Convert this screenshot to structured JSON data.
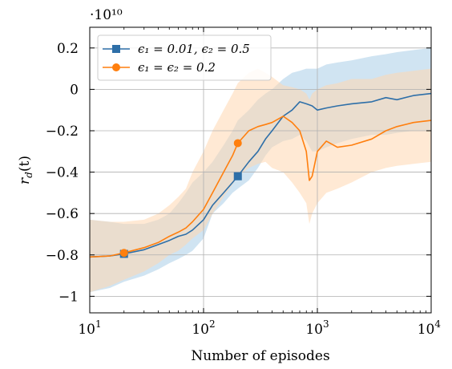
{
  "chart_data": {
    "type": "line",
    "xscale": "log",
    "xlim": [
      10,
      10000
    ],
    "ylim": [
      -1.08,
      0.3
    ],
    "y_multiplier_label": "·10¹⁰",
    "xlabel": "Number of episodes",
    "ylabel": "r_d(t)",
    "ylabel_display": "r",
    "ylabel_sub": "d",
    "ylabel_suffix": "(t)",
    "grid": true,
    "legend_position": "top-left",
    "x_ticks": [
      {
        "value": 10,
        "base": "10",
        "exp": "1"
      },
      {
        "value": 100,
        "base": "10",
        "exp": "2"
      },
      {
        "value": 1000,
        "base": "10",
        "exp": "3"
      },
      {
        "value": 10000,
        "base": "10",
        "exp": "4"
      }
    ],
    "y_ticks": [
      {
        "value": 0.2,
        "label": "0.2"
      },
      {
        "value": 0,
        "label": "0"
      },
      {
        "value": -0.2,
        "label": "−0.2"
      },
      {
        "value": -0.4,
        "label": "−0.4"
      },
      {
        "value": -0.6,
        "label": "−0.6"
      },
      {
        "value": -0.8,
        "label": "−0.8"
      },
      {
        "value": -1.0,
        "label": "−1"
      }
    ],
    "series": [
      {
        "name": "ϵ₁ = 0.01,  ϵ₂ = 0.5",
        "color": "#2e6fa8",
        "band_color": "#a9cde8",
        "marker": "square",
        "markers_at": [
          20,
          200
        ],
        "x": [
          10,
          15,
          20,
          30,
          40,
          50,
          60,
          70,
          80,
          100,
          120,
          150,
          180,
          200,
          250,
          300,
          350,
          400,
          500,
          600,
          700,
          800,
          900,
          1000,
          1200,
          1500,
          2000,
          3000,
          4000,
          5000,
          7000,
          10000
        ],
        "y": [
          -0.81,
          -0.805,
          -0.795,
          -0.775,
          -0.75,
          -0.73,
          -0.71,
          -0.7,
          -0.68,
          -0.63,
          -0.56,
          -0.5,
          -0.45,
          -0.42,
          -0.35,
          -0.3,
          -0.24,
          -0.2,
          -0.13,
          -0.1,
          -0.06,
          -0.07,
          -0.08,
          -0.1,
          -0.09,
          -0.08,
          -0.07,
          -0.06,
          -0.04,
          -0.05,
          -0.03,
          -0.02
        ],
        "y_lower": [
          -0.98,
          -0.96,
          -0.93,
          -0.9,
          -0.87,
          -0.84,
          -0.82,
          -0.8,
          -0.78,
          -0.72,
          -0.6,
          -0.55,
          -0.5,
          -0.48,
          -0.44,
          -0.38,
          -0.32,
          -0.28,
          -0.25,
          -0.24,
          -0.22,
          -0.25,
          -0.3,
          -0.3,
          -0.28,
          -0.26,
          -0.24,
          -0.22,
          -0.22,
          -0.21,
          -0.2,
          -0.2
        ],
        "y_upper": [
          -0.63,
          -0.64,
          -0.65,
          -0.65,
          -0.63,
          -0.6,
          -0.55,
          -0.5,
          -0.45,
          -0.4,
          -0.35,
          -0.27,
          -0.2,
          -0.15,
          -0.1,
          -0.05,
          -0.02,
          0.0,
          0.05,
          0.08,
          0.09,
          0.1,
          0.1,
          0.1,
          0.12,
          0.13,
          0.14,
          0.16,
          0.17,
          0.18,
          0.19,
          0.2
        ]
      },
      {
        "name": "ϵ₁ = ϵ₂ = 0.2",
        "color": "#ff7f0e",
        "band_color": "#ffd7b0",
        "marker": "circle",
        "markers_at": [
          20,
          200
        ],
        "x": [
          10,
          15,
          20,
          30,
          40,
          50,
          60,
          70,
          80,
          100,
          120,
          150,
          180,
          200,
          250,
          300,
          350,
          400,
          500,
          600,
          700,
          800,
          850,
          900,
          1000,
          1200,
          1500,
          2000,
          3000,
          4000,
          5000,
          7000,
          10000
        ],
        "y": [
          -0.81,
          -0.805,
          -0.79,
          -0.765,
          -0.74,
          -0.71,
          -0.69,
          -0.67,
          -0.64,
          -0.58,
          -0.5,
          -0.4,
          -0.32,
          -0.26,
          -0.2,
          -0.18,
          -0.17,
          -0.16,
          -0.13,
          -0.16,
          -0.2,
          -0.3,
          -0.44,
          -0.42,
          -0.3,
          -0.25,
          -0.28,
          -0.27,
          -0.24,
          -0.2,
          -0.18,
          -0.16,
          -0.15
        ],
        "y_lower": [
          -0.98,
          -0.95,
          -0.92,
          -0.88,
          -0.84,
          -0.8,
          -0.78,
          -0.75,
          -0.72,
          -0.68,
          -0.6,
          -0.52,
          -0.46,
          -0.42,
          -0.38,
          -0.36,
          -0.35,
          -0.38,
          -0.4,
          -0.45,
          -0.5,
          -0.55,
          -0.65,
          -0.6,
          -0.55,
          -0.5,
          -0.48,
          -0.45,
          -0.4,
          -0.38,
          -0.37,
          -0.36,
          -0.35
        ],
        "y_upper": [
          -0.63,
          -0.64,
          -0.64,
          -0.63,
          -0.6,
          -0.56,
          -0.52,
          -0.48,
          -0.4,
          -0.3,
          -0.2,
          -0.1,
          -0.02,
          0.03,
          0.08,
          0.1,
          0.08,
          0.06,
          0.02,
          0.01,
          0.0,
          -0.02,
          -0.05,
          -0.02,
          0.0,
          0.02,
          0.03,
          0.05,
          0.05,
          0.07,
          0.08,
          0.09,
          0.1
        ]
      }
    ]
  }
}
